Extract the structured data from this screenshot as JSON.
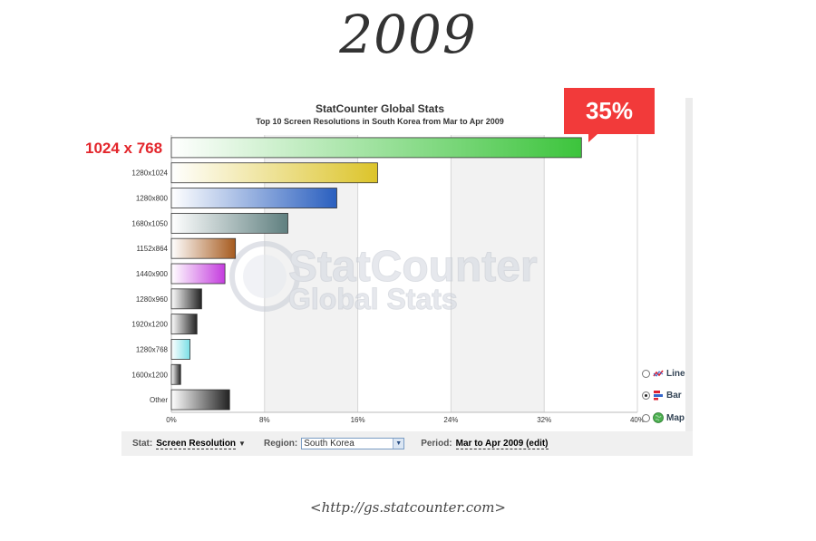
{
  "year": "2009",
  "highlight": {
    "label": "1024 x 768",
    "value": "35%"
  },
  "toggles": [
    {
      "label": "Line",
      "checked": false,
      "icon": "line-chart-icon"
    },
    {
      "label": "Bar",
      "checked": true,
      "icon": "bar-chart-icon"
    },
    {
      "label": "Map",
      "checked": false,
      "icon": "globe-icon"
    }
  ],
  "controls": {
    "stat_label": "Stat:",
    "stat_value": "Screen Resolution",
    "region_label": "Region:",
    "region_value": "South Korea",
    "period_label": "Period:",
    "period_value": "Mar to Apr 2009 (edit)"
  },
  "url": "<http://gs.statcounter.com>",
  "watermark": {
    "line1": "StatCounter",
    "line2": "Global Stats"
  },
  "chart_data": {
    "type": "bar",
    "orientation": "horizontal",
    "title": "StatCounter Global Stats",
    "subtitle": "Top 10 Screen Resolutions in South Korea from Mar to Apr 2009",
    "categories": [
      "1024x768",
      "1280x1024",
      "1280x800",
      "1680x1050",
      "1152x864",
      "1440x900",
      "1280x960",
      "1920x1200",
      "1280x768",
      "1600x1200",
      "Other"
    ],
    "tick_labels": [
      "",
      "1280x1024",
      "1280x800",
      "1680x1050",
      "1152x864",
      "1440x900",
      "1280x960",
      "1920x1200",
      "1280x768",
      "1600x1200",
      "Other"
    ],
    "values": [
      35.2,
      17.7,
      14.2,
      10.0,
      5.5,
      4.6,
      2.6,
      2.2,
      1.6,
      0.8,
      5.0
    ],
    "colors": [
      "#3cc43c",
      "#dcc42a",
      "#2a5fbf",
      "#5f7f7f",
      "#a65a1e",
      "#c43cde",
      "#222222",
      "#222222",
      "#79dfe6",
      "#222222",
      "#222222"
    ],
    "xticks": [
      "0%",
      "8%",
      "16%",
      "24%",
      "32%",
      "40%"
    ],
    "xlim": [
      0,
      40
    ],
    "grid": true
  }
}
